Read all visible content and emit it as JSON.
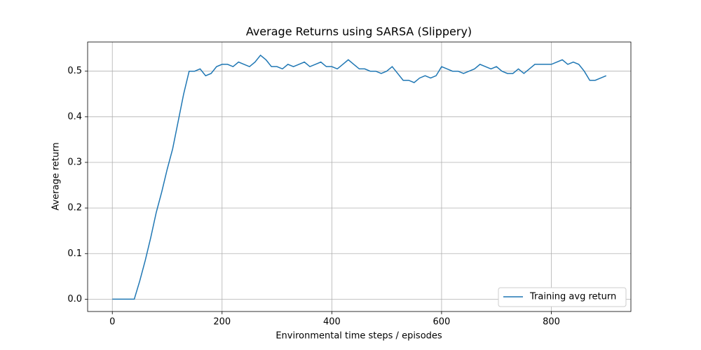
{
  "chart_data": {
    "type": "line",
    "title": "Average Returns using SARSA (Slippery)",
    "x_label": "Environmental time steps / episodes",
    "y_label": "Average return",
    "x": [
      0,
      10,
      20,
      30,
      40,
      50,
      60,
      70,
      80,
      90,
      100,
      110,
      120,
      130,
      140,
      150,
      160,
      170,
      180,
      190,
      200,
      210,
      220,
      230,
      240,
      250,
      260,
      270,
      280,
      290,
      300,
      310,
      320,
      330,
      340,
      350,
      360,
      370,
      380,
      390,
      400,
      410,
      420,
      430,
      440,
      450,
      460,
      470,
      480,
      490,
      500,
      510,
      520,
      530,
      540,
      550,
      560,
      570,
      580,
      590,
      600,
      610,
      620,
      630,
      640,
      650,
      660,
      670,
      680,
      690,
      700,
      710,
      720,
      730,
      740,
      750,
      760,
      770,
      780,
      790,
      800,
      810,
      820,
      830,
      840,
      850,
      860,
      870,
      880,
      890,
      900
    ],
    "series": [
      {
        "name": "Training avg return",
        "color": "#1f77b4",
        "values": [
          0,
          0,
          0,
          0,
          0,
          0.04,
          0.085,
          0.135,
          0.19,
          0.235,
          0.285,
          0.33,
          0.39,
          0.45,
          0.5,
          0.5,
          0.505,
          0.49,
          0.495,
          0.51,
          0.515,
          0.515,
          0.51,
          0.52,
          0.515,
          0.51,
          0.52,
          0.535,
          0.525,
          0.51,
          0.51,
          0.505,
          0.515,
          0.51,
          0.515,
          0.52,
          0.51,
          0.515,
          0.52,
          0.51,
          0.51,
          0.505,
          0.515,
          0.525,
          0.515,
          0.505,
          0.505,
          0.5,
          0.5,
          0.495,
          0.5,
          0.51,
          0.495,
          0.48,
          0.48,
          0.475,
          0.485,
          0.49,
          0.485,
          0.49,
          0.51,
          0.505,
          0.5,
          0.5,
          0.495,
          0.5,
          0.505,
          0.515,
          0.51,
          0.505,
          0.51,
          0.5,
          0.495,
          0.495,
          0.505,
          0.495,
          0.505,
          0.515,
          0.515,
          0.515,
          0.515,
          0.52,
          0.525,
          0.515,
          0.52,
          0.515,
          0.5,
          0.48,
          0.48,
          0.485,
          0.49
        ]
      }
    ],
    "xlim": [
      -45,
      945
    ],
    "ylim": [
      -0.027,
      0.564
    ],
    "xticks": [
      0,
      200,
      400,
      600,
      800
    ],
    "yticks": [
      {
        "value": 0,
        "label": "0.0"
      },
      0.1,
      0.2,
      0.3,
      0.4,
      0.5
    ],
    "grid": true,
    "legend": "lower right"
  }
}
